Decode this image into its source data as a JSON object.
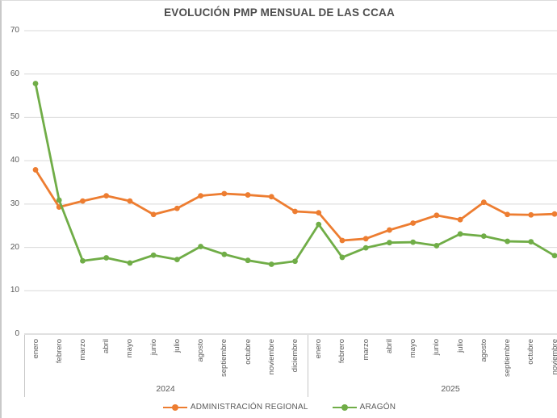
{
  "title": "EVOLUCIÓN PMP MENSUAL DE LAS CCAA",
  "colors": {
    "administracion_regional": "#ED7D31",
    "aragon": "#70AD47",
    "gridline": "#D9D9D9",
    "axis_line": "#C0C0C0",
    "axis_text": "#595959",
    "title_text": "#4D4D4D"
  },
  "chart_data": {
    "type": "line",
    "title": "EVOLUCIÓN PMP MENSUAL DE LAS CCAA",
    "ylim": [
      0,
      70
    ],
    "y_ticks": [
      0,
      10,
      20,
      30,
      40,
      50,
      60,
      70
    ],
    "grid": true,
    "legend_position": "bottom",
    "x_groups": [
      {
        "year": "2024",
        "months": [
          "enero",
          "febrero",
          "marzo",
          "abril",
          "mayo",
          "junio",
          "julio",
          "agosto",
          "septiembre",
          "octubre",
          "noviembre",
          "diciembre"
        ]
      },
      {
        "year": "2025",
        "months": [
          "enero",
          "febrero",
          "marzo",
          "abril",
          "mayo",
          "junio",
          "julio",
          "agosto",
          "septiembre",
          "octubre",
          "noviembre"
        ]
      }
    ],
    "series": [
      {
        "name": "ADMINISTRACIÓN REGIONAL",
        "color": "#ED7D31",
        "values": [
          37.9,
          29.3,
          30.7,
          31.9,
          30.7,
          27.6,
          29.0,
          31.9,
          32.4,
          32.1,
          31.7,
          28.3,
          28.0,
          21.6,
          22.0,
          24.0,
          25.6,
          27.4,
          26.4,
          30.4,
          27.6,
          27.5,
          27.7
        ]
      },
      {
        "name": "ARAGÓN",
        "color": "#70AD47",
        "values": [
          57.8,
          30.9,
          16.9,
          17.6,
          16.4,
          18.2,
          17.2,
          20.2,
          18.4,
          17.0,
          16.1,
          16.8,
          25.3,
          17.7,
          19.9,
          21.1,
          21.2,
          20.4,
          23.1,
          22.6,
          21.4,
          21.3,
          18.1
        ]
      }
    ]
  },
  "legend": {
    "items": [
      {
        "label": "ADMINISTRACIÓN REGIONAL",
        "color": "#ED7D31"
      },
      {
        "label": "ARAGÓN",
        "color": "#70AD47"
      }
    ]
  }
}
